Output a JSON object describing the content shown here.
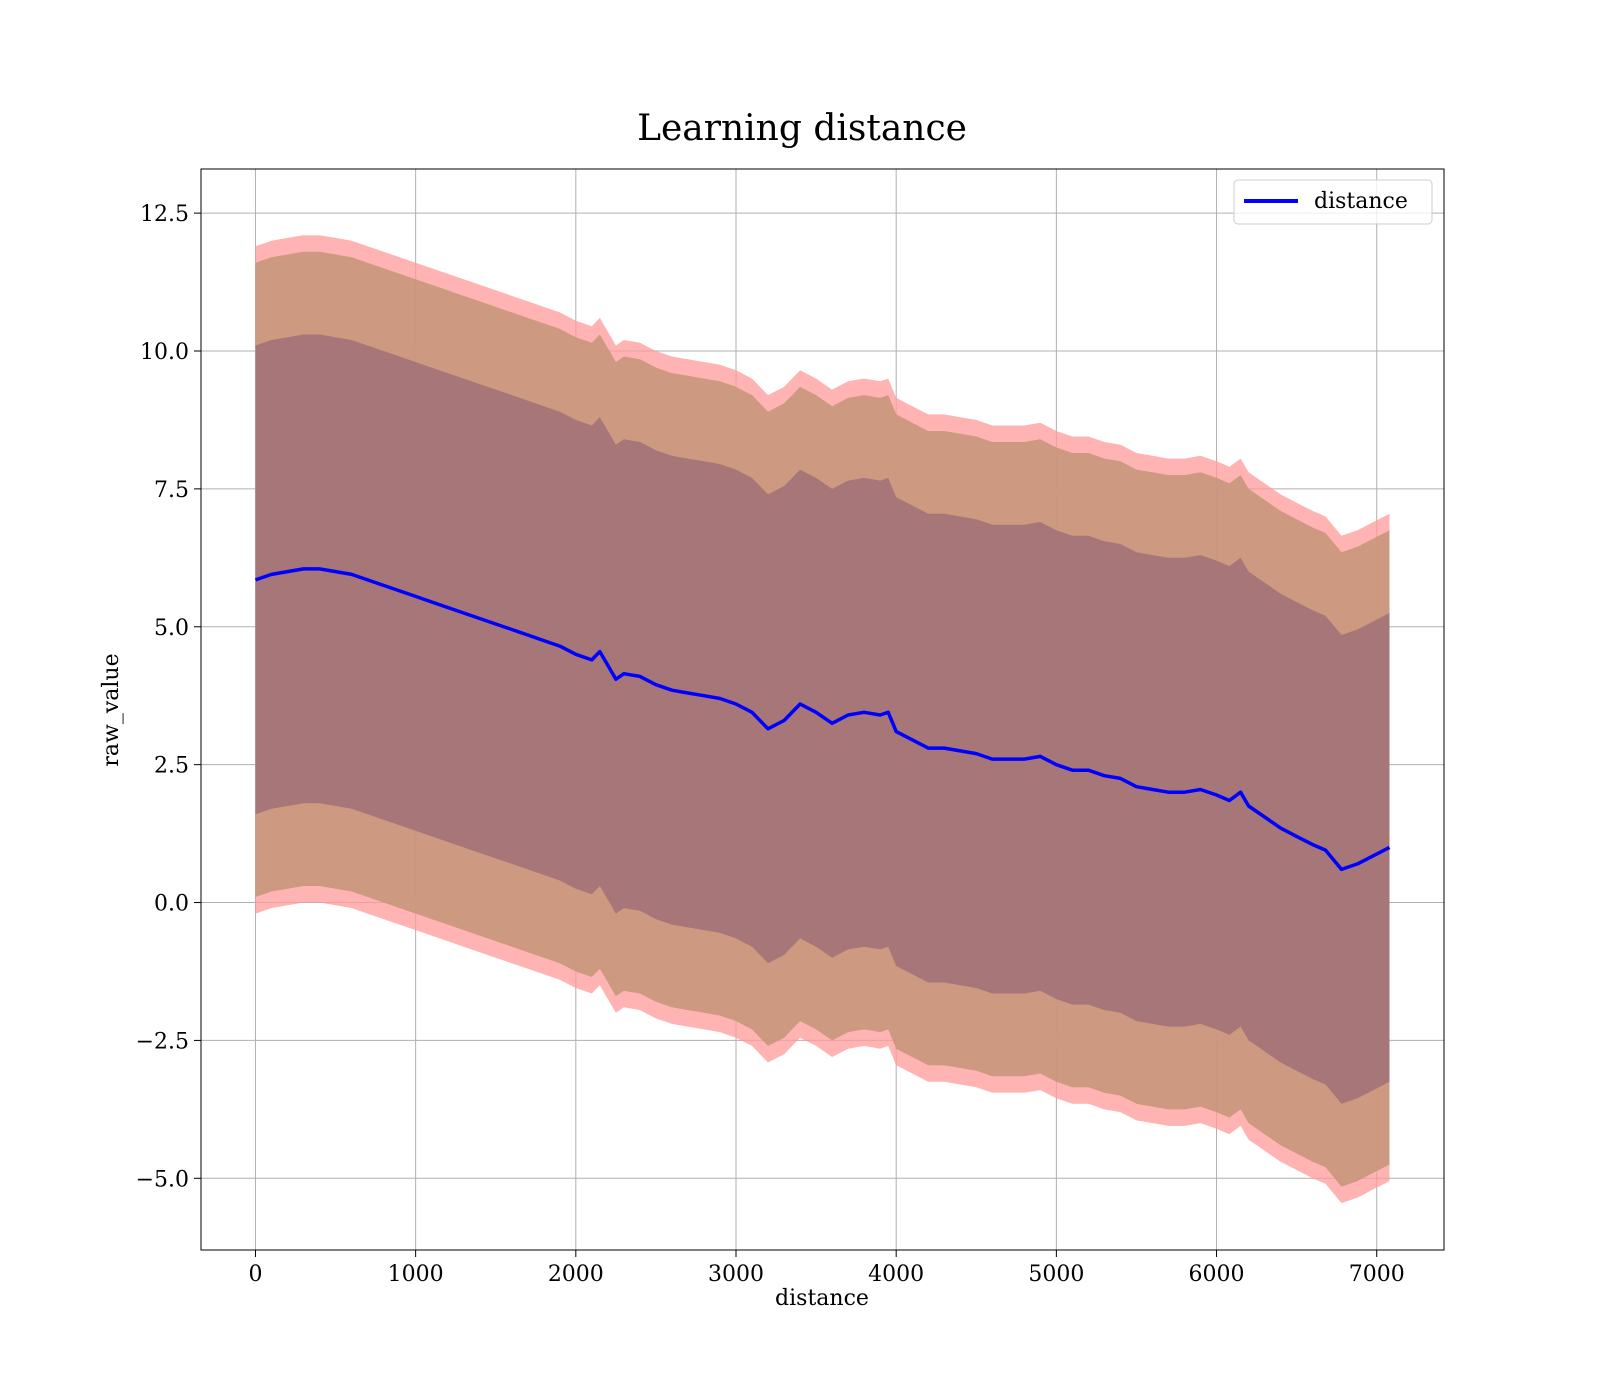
{
  "chart_data": {
    "type": "line",
    "title": "Learning distance",
    "xlabel": "distance",
    "ylabel": "raw_value",
    "xlim": [
      -340,
      7420
    ],
    "ylim": [
      -6.3,
      13.3
    ],
    "xticks": [
      0,
      1000,
      2000,
      3000,
      4000,
      5000,
      6000,
      7000
    ],
    "yticks": [
      -5.0,
      -2.5,
      0.0,
      2.5,
      5.0,
      7.5,
      10.0,
      12.5
    ],
    "xtick_labels": [
      "0",
      "1000",
      "2000",
      "3000",
      "4000",
      "5000",
      "6000",
      "7000"
    ],
    "ytick_labels": [
      "−5.0",
      "−2.5",
      "0.0",
      "2.5",
      "5.0",
      "7.5",
      "10.0",
      "12.5"
    ],
    "grid": true,
    "legend": {
      "position": "top-right",
      "entries": [
        "distance"
      ]
    },
    "colors": {
      "line": "#0000ff",
      "band_outer": "#ff9999",
      "band_middle": "#c8967a",
      "band_inner": "#a07078"
    },
    "series": [
      {
        "name": "distance",
        "x": [
          0,
          100,
          200,
          300,
          400,
          500,
          600,
          700,
          800,
          900,
          1000,
          1100,
          1200,
          1300,
          1400,
          1500,
          1600,
          1700,
          1800,
          1900,
          2000,
          2100,
          2150,
          2200,
          2250,
          2300,
          2400,
          2500,
          2600,
          2700,
          2800,
          2900,
          3000,
          3100,
          3200,
          3300,
          3400,
          3500,
          3600,
          3700,
          3800,
          3900,
          3950,
          4000,
          4100,
          4200,
          4300,
          4400,
          4500,
          4600,
          4700,
          4800,
          4900,
          5000,
          5100,
          5200,
          5300,
          5400,
          5500,
          5600,
          5700,
          5800,
          5900,
          6000,
          6080,
          6150,
          6200,
          6300,
          6400,
          6500,
          6600,
          6680,
          6780,
          6880,
          6980,
          7080
        ],
        "y": [
          5.85,
          5.95,
          6.0,
          6.05,
          6.05,
          6.0,
          5.95,
          5.85,
          5.75,
          5.65,
          5.55,
          5.45,
          5.35,
          5.25,
          5.15,
          5.05,
          4.95,
          4.85,
          4.75,
          4.65,
          4.5,
          4.4,
          4.55,
          4.3,
          4.05,
          4.15,
          4.1,
          3.95,
          3.85,
          3.8,
          3.75,
          3.7,
          3.6,
          3.45,
          3.15,
          3.3,
          3.6,
          3.45,
          3.25,
          3.4,
          3.45,
          3.4,
          3.45,
          3.1,
          2.95,
          2.8,
          2.8,
          2.75,
          2.7,
          2.6,
          2.6,
          2.6,
          2.65,
          2.5,
          2.4,
          2.4,
          2.3,
          2.25,
          2.1,
          2.05,
          2.0,
          2.0,
          2.05,
          1.95,
          1.85,
          2.0,
          1.75,
          1.55,
          1.35,
          1.2,
          1.05,
          0.95,
          0.6,
          0.7,
          0.85,
          1.0
        ]
      }
    ],
    "bands": [
      {
        "name": "outer",
        "offset": 6.05
      },
      {
        "name": "middle",
        "offset": 5.75
      },
      {
        "name": "inner",
        "offset": 4.25
      }
    ]
  }
}
